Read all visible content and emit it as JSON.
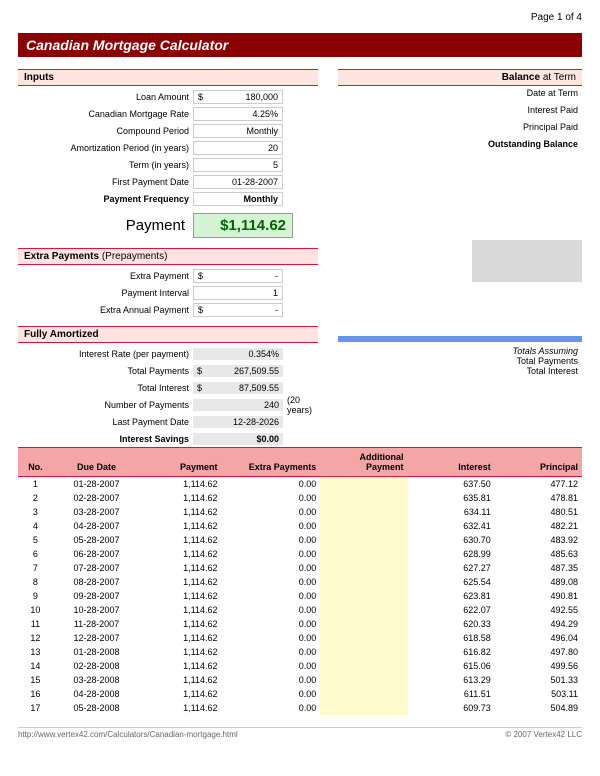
{
  "page_indicator": "Page 1 of 4",
  "title": "Canadian Mortgage Calculator",
  "colors": {
    "title_bg": "#8b0000",
    "section_bg": "#ffe4e1",
    "section_border": "#dc143c",
    "payment_bg": "#d4f4d4",
    "payment_text": "#006400",
    "grey_box": "#d9d9d9",
    "blue_bar": "#6495ed",
    "fully_bg": "#e8e8e8",
    "sched_hdr_bg": "#f4a6a6",
    "addtl_bg": "#fffacd"
  },
  "sections": {
    "inputs": {
      "header": "Inputs",
      "rows": [
        {
          "label": "Loan Amount",
          "currency": "$",
          "value": "180,000"
        },
        {
          "label": "Canadian Mortgage Rate",
          "currency": "",
          "value": "4.25%"
        },
        {
          "label": "Compound Period",
          "currency": "",
          "value": "Monthly"
        },
        {
          "label": "Amortization Period (in years)",
          "currency": "",
          "value": "20"
        },
        {
          "label": "Term (in years)",
          "currency": "",
          "value": "5"
        },
        {
          "label": "First Payment Date",
          "currency": "",
          "value": "01-28-2007"
        },
        {
          "label": "Payment Frequency",
          "currency": "",
          "value": "Monthly",
          "bold": true
        }
      ]
    },
    "payment": {
      "label": "Payment",
      "value": "$1,114.62"
    },
    "extra": {
      "header": "Extra Payments",
      "header_sub": "(Prepayments)",
      "rows": [
        {
          "label": "Extra Payment",
          "currency": "$",
          "value": "-"
        },
        {
          "label": "Payment Interval",
          "currency": "",
          "value": "1"
        },
        {
          "label": "Extra Annual Payment",
          "currency": "$",
          "value": "-"
        }
      ]
    },
    "fully": {
      "header": "Fully Amortized",
      "rows": [
        {
          "label": "Interest Rate (per payment)",
          "currency": "",
          "value": "0.354%"
        },
        {
          "label": "Total Payments",
          "currency": "$",
          "value": "267,509.55"
        },
        {
          "label": "Total Interest",
          "currency": "$",
          "value": "87,509.55"
        },
        {
          "label": "Number of Payments",
          "currency": "",
          "value": "240",
          "note": "(20 years)"
        },
        {
          "label": "Last Payment Date",
          "currency": "",
          "value": "12-28-2026"
        },
        {
          "label": "Interest Savings",
          "currency": "",
          "value": "$0.00",
          "bold": true
        }
      ]
    },
    "balance": {
      "header": "Balance",
      "header_sub": "at Term",
      "rows": [
        "Date at Term",
        "Interest Paid",
        "Principal Paid",
        "Outstanding Balance"
      ]
    },
    "totals": {
      "header": "Totals Assuming",
      "rows": [
        "Total Payments",
        "Total Interest"
      ]
    }
  },
  "schedule": {
    "columns": [
      "No.",
      "Due Date",
      "Payment",
      "Extra Payments",
      "Additional Payment",
      "Interest",
      "Principal"
    ],
    "col_widths": [
      "6%",
      "15%",
      "14%",
      "17%",
      "15%",
      "15%",
      "15%"
    ],
    "rows": [
      [
        "1",
        "01-28-2007",
        "1,114.62",
        "0.00",
        "",
        "637.50",
        "477.12"
      ],
      [
        "2",
        "02-28-2007",
        "1,114.62",
        "0.00",
        "",
        "635.81",
        "478.81"
      ],
      [
        "3",
        "03-28-2007",
        "1,114.62",
        "0.00",
        "",
        "634.11",
        "480.51"
      ],
      [
        "4",
        "04-28-2007",
        "1,114.62",
        "0.00",
        "",
        "632.41",
        "482.21"
      ],
      [
        "5",
        "05-28-2007",
        "1,114.62",
        "0.00",
        "",
        "630.70",
        "483.92"
      ],
      [
        "6",
        "06-28-2007",
        "1,114.62",
        "0.00",
        "",
        "628.99",
        "485.63"
      ],
      [
        "7",
        "07-28-2007",
        "1,114.62",
        "0.00",
        "",
        "627.27",
        "487.35"
      ],
      [
        "8",
        "08-28-2007",
        "1,114.62",
        "0.00",
        "",
        "625.54",
        "489.08"
      ],
      [
        "9",
        "09-28-2007",
        "1,114.62",
        "0.00",
        "",
        "623.81",
        "490.81"
      ],
      [
        "10",
        "10-28-2007",
        "1,114.62",
        "0.00",
        "",
        "622.07",
        "492.55"
      ],
      [
        "11",
        "11-28-2007",
        "1,114.62",
        "0.00",
        "",
        "620.33",
        "494.29"
      ],
      [
        "12",
        "12-28-2007",
        "1,114.62",
        "0.00",
        "",
        "618.58",
        "496.04"
      ],
      [
        "13",
        "01-28-2008",
        "1,114.62",
        "0.00",
        "",
        "616.82",
        "497.80"
      ],
      [
        "14",
        "02-28-2008",
        "1,114.62",
        "0.00",
        "",
        "615.06",
        "499.56"
      ],
      [
        "15",
        "03-28-2008",
        "1,114.62",
        "0.00",
        "",
        "613.29",
        "501.33"
      ],
      [
        "16",
        "04-28-2008",
        "1,114.62",
        "0.00",
        "",
        "611.51",
        "503.11"
      ],
      [
        "17",
        "05-28-2008",
        "1,114.62",
        "0.00",
        "",
        "609.73",
        "504.89"
      ]
    ]
  },
  "footer": {
    "url": "http://www.vertex42.com/Calculators/Canadian-mortgage.html",
    "copyright": "© 2007 Vertex42 LLC"
  }
}
